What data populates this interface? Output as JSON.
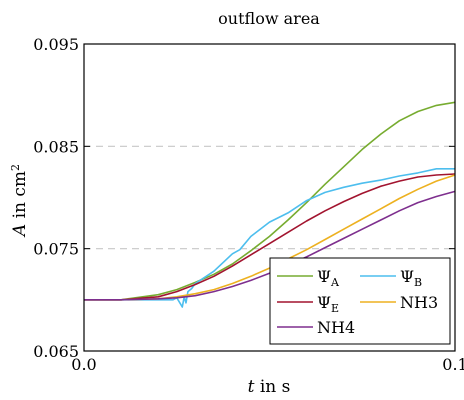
{
  "chart_data": {
    "type": "line",
    "title": "outflow area",
    "xlabel": "t in s",
    "ylabel": "A in cm²",
    "xlim": [
      0.0,
      0.1
    ],
    "ylim": [
      0.065,
      0.095
    ],
    "xticks": [
      {
        "value": 0.0,
        "label": "0.0"
      },
      {
        "value": 0.1,
        "label": "0.1"
      }
    ],
    "yticks": [
      {
        "value": 0.065,
        "label": "0.065"
      },
      {
        "value": 0.075,
        "label": "0.075"
      },
      {
        "value": 0.085,
        "label": "0.085"
      },
      {
        "value": 0.095,
        "label": "0.095"
      }
    ],
    "grid": "horizontal dashed at 0.075 and 0.085",
    "legend_position": "bottom-right",
    "series": [
      {
        "name": "ΨA",
        "name_main": "Ψ",
        "name_sub": "A",
        "color": "#77ac30",
        "x": [
          0.0,
          0.01,
          0.02,
          0.025,
          0.03,
          0.035,
          0.04,
          0.045,
          0.05,
          0.055,
          0.06,
          0.065,
          0.07,
          0.075,
          0.08,
          0.085,
          0.09,
          0.095,
          0.1
        ],
        "y": [
          0.07,
          0.07,
          0.0705,
          0.071,
          0.0717,
          0.0725,
          0.0735,
          0.0748,
          0.0762,
          0.0778,
          0.0795,
          0.0813,
          0.083,
          0.0847,
          0.0862,
          0.0875,
          0.0884,
          0.089,
          0.0893
        ]
      },
      {
        "name": "ΨB",
        "name_main": "Ψ",
        "name_sub": "B",
        "color": "#4dbeee",
        "x": [
          0.0,
          0.01,
          0.02,
          0.024,
          0.025,
          0.026,
          0.0265,
          0.027,
          0.0275,
          0.028,
          0.029,
          0.03,
          0.035,
          0.04,
          0.042,
          0.045,
          0.05,
          0.055,
          0.06,
          0.065,
          0.07,
          0.075,
          0.08,
          0.085,
          0.09,
          0.095,
          0.1
        ],
        "y": [
          0.07,
          0.07,
          0.07,
          0.07,
          0.0702,
          0.0696,
          0.0693,
          0.0703,
          0.0697,
          0.0708,
          0.0711,
          0.0716,
          0.0728,
          0.0745,
          0.0749,
          0.0762,
          0.0776,
          0.0785,
          0.0797,
          0.0805,
          0.081,
          0.0814,
          0.0817,
          0.0821,
          0.0824,
          0.0828,
          0.0828
        ]
      },
      {
        "name": "ΨE",
        "name_main": "Ψ",
        "name_sub": "E",
        "color": "#a2142f",
        "x": [
          0.0,
          0.01,
          0.02,
          0.025,
          0.03,
          0.035,
          0.04,
          0.045,
          0.05,
          0.055,
          0.06,
          0.065,
          0.07,
          0.075,
          0.08,
          0.085,
          0.09,
          0.095,
          0.1
        ],
        "y": [
          0.07,
          0.07,
          0.0703,
          0.0708,
          0.0715,
          0.0723,
          0.0733,
          0.0744,
          0.0755,
          0.0766,
          0.0777,
          0.0787,
          0.0796,
          0.0804,
          0.0811,
          0.0816,
          0.082,
          0.0822,
          0.0823
        ]
      },
      {
        "name": "NH3",
        "color": "#edb120",
        "x": [
          0.0,
          0.01,
          0.02,
          0.025,
          0.03,
          0.035,
          0.04,
          0.045,
          0.05,
          0.055,
          0.06,
          0.065,
          0.07,
          0.075,
          0.08,
          0.085,
          0.09,
          0.095,
          0.1
        ],
        "y": [
          0.07,
          0.07,
          0.0701,
          0.0703,
          0.0706,
          0.071,
          0.0716,
          0.0723,
          0.0731,
          0.074,
          0.0749,
          0.0759,
          0.0769,
          0.0779,
          0.0789,
          0.0799,
          0.0808,
          0.0816,
          0.0822
        ]
      },
      {
        "name": "NH4",
        "color": "#7e2f8e",
        "x": [
          0.0,
          0.01,
          0.02,
          0.025,
          0.03,
          0.035,
          0.04,
          0.045,
          0.05,
          0.055,
          0.06,
          0.065,
          0.07,
          0.075,
          0.08,
          0.085,
          0.09,
          0.095,
          0.1
        ],
        "y": [
          0.07,
          0.07,
          0.0701,
          0.0702,
          0.0704,
          0.0708,
          0.0713,
          0.0719,
          0.0726,
          0.0734,
          0.0742,
          0.0751,
          0.076,
          0.0769,
          0.0778,
          0.0787,
          0.0795,
          0.0801,
          0.0806
        ]
      }
    ]
  }
}
